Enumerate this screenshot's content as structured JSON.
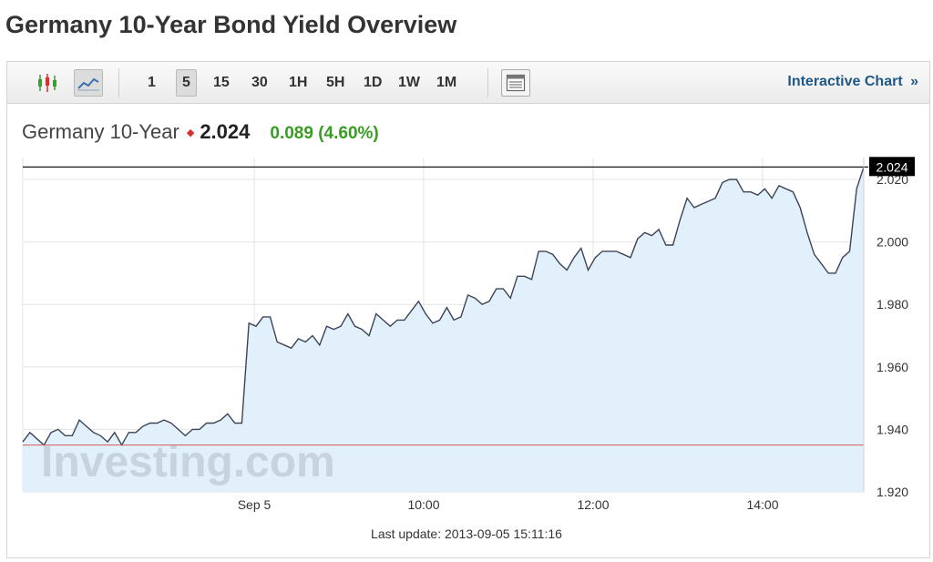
{
  "page": {
    "title": "Germany 10-Year Bond Yield Overview"
  },
  "toolbar": {
    "chart_type_icons": [
      "candlestick-icon",
      "line-chart-icon"
    ],
    "active_chart_type": "line-chart-icon",
    "periods": [
      "1",
      "5",
      "15",
      "30",
      "1H",
      "5H",
      "1D",
      "1W",
      "1M"
    ],
    "active_period": "5",
    "table_icon": "table-view-icon",
    "interactive_label": "Interactive Chart",
    "interactive_arrow": "»"
  },
  "quote": {
    "name": "Germany 10-Year",
    "direction_icon": "down-arrow-icon",
    "last": "2.024",
    "change": "0.089 (4.60%)"
  },
  "chart_data": {
    "type": "area",
    "y_ticks": [
      "1.920",
      "1.940",
      "1.960",
      "1.980",
      "2.000",
      "2.020"
    ],
    "x_ticks": [
      "Sep 5",
      "10:00",
      "12:00",
      "14:00"
    ],
    "ylim": [
      1.92,
      2.027
    ],
    "current_value_label": "2.024",
    "current_value": 2.024,
    "previous_close": 1.935,
    "watermark": "Investing.com",
    "grid": true,
    "series": [
      {
        "values": [
          1.936,
          1.939,
          1.937,
          1.935,
          1.939,
          1.94,
          1.938,
          1.938,
          1.943,
          1.941,
          1.939,
          1.938,
          1.936,
          1.939,
          1.935,
          1.939,
          1.939,
          1.941,
          1.942,
          1.942,
          1.943,
          1.942,
          1.94,
          1.938,
          1.94,
          1.94,
          1.942,
          1.942,
          1.943,
          1.945,
          1.942,
          1.942,
          1.974,
          1.973,
          1.976,
          1.976,
          1.968,
          1.967,
          1.966,
          1.969,
          1.968,
          1.97,
          1.967,
          1.973,
          1.972,
          1.973,
          1.977,
          1.973,
          1.972,
          1.97,
          1.977,
          1.975,
          1.973,
          1.975,
          1.975,
          1.978,
          1.981,
          1.977,
          1.974,
          1.975,
          1.979,
          1.975,
          1.976,
          1.983,
          1.982,
          1.98,
          1.981,
          1.985,
          1.985,
          1.982,
          1.989,
          1.989,
          1.988,
          1.997,
          1.997,
          1.996,
          1.993,
          1.991,
          1.995,
          1.998,
          1.991,
          1.995,
          1.997,
          1.997,
          1.997,
          1.996,
          1.995,
          2.001,
          2.003,
          2.002,
          2.004,
          1.999,
          1.999,
          2.007,
          2.014,
          2.011,
          2.012,
          2.013,
          2.014,
          2.019,
          2.02,
          2.02,
          2.016,
          2.016,
          2.015,
          2.017,
          2.014,
          2.018,
          2.017,
          2.016,
          2.011,
          2.003,
          1.996,
          1.993,
          1.99,
          1.99,
          1.995,
          1.997,
          2.017,
          2.024
        ]
      }
    ],
    "last_update": "Last update: 2013-09-05 15:11:16"
  },
  "colors": {
    "line": "#3c4558",
    "area": "#e2f0fb",
    "grid": "#e3e3e3",
    "previous_close_line": "#d26b6b",
    "current_line": "#000000",
    "positive": "#3a9d23",
    "negative": "#d9302c",
    "link": "#1f5886"
  }
}
